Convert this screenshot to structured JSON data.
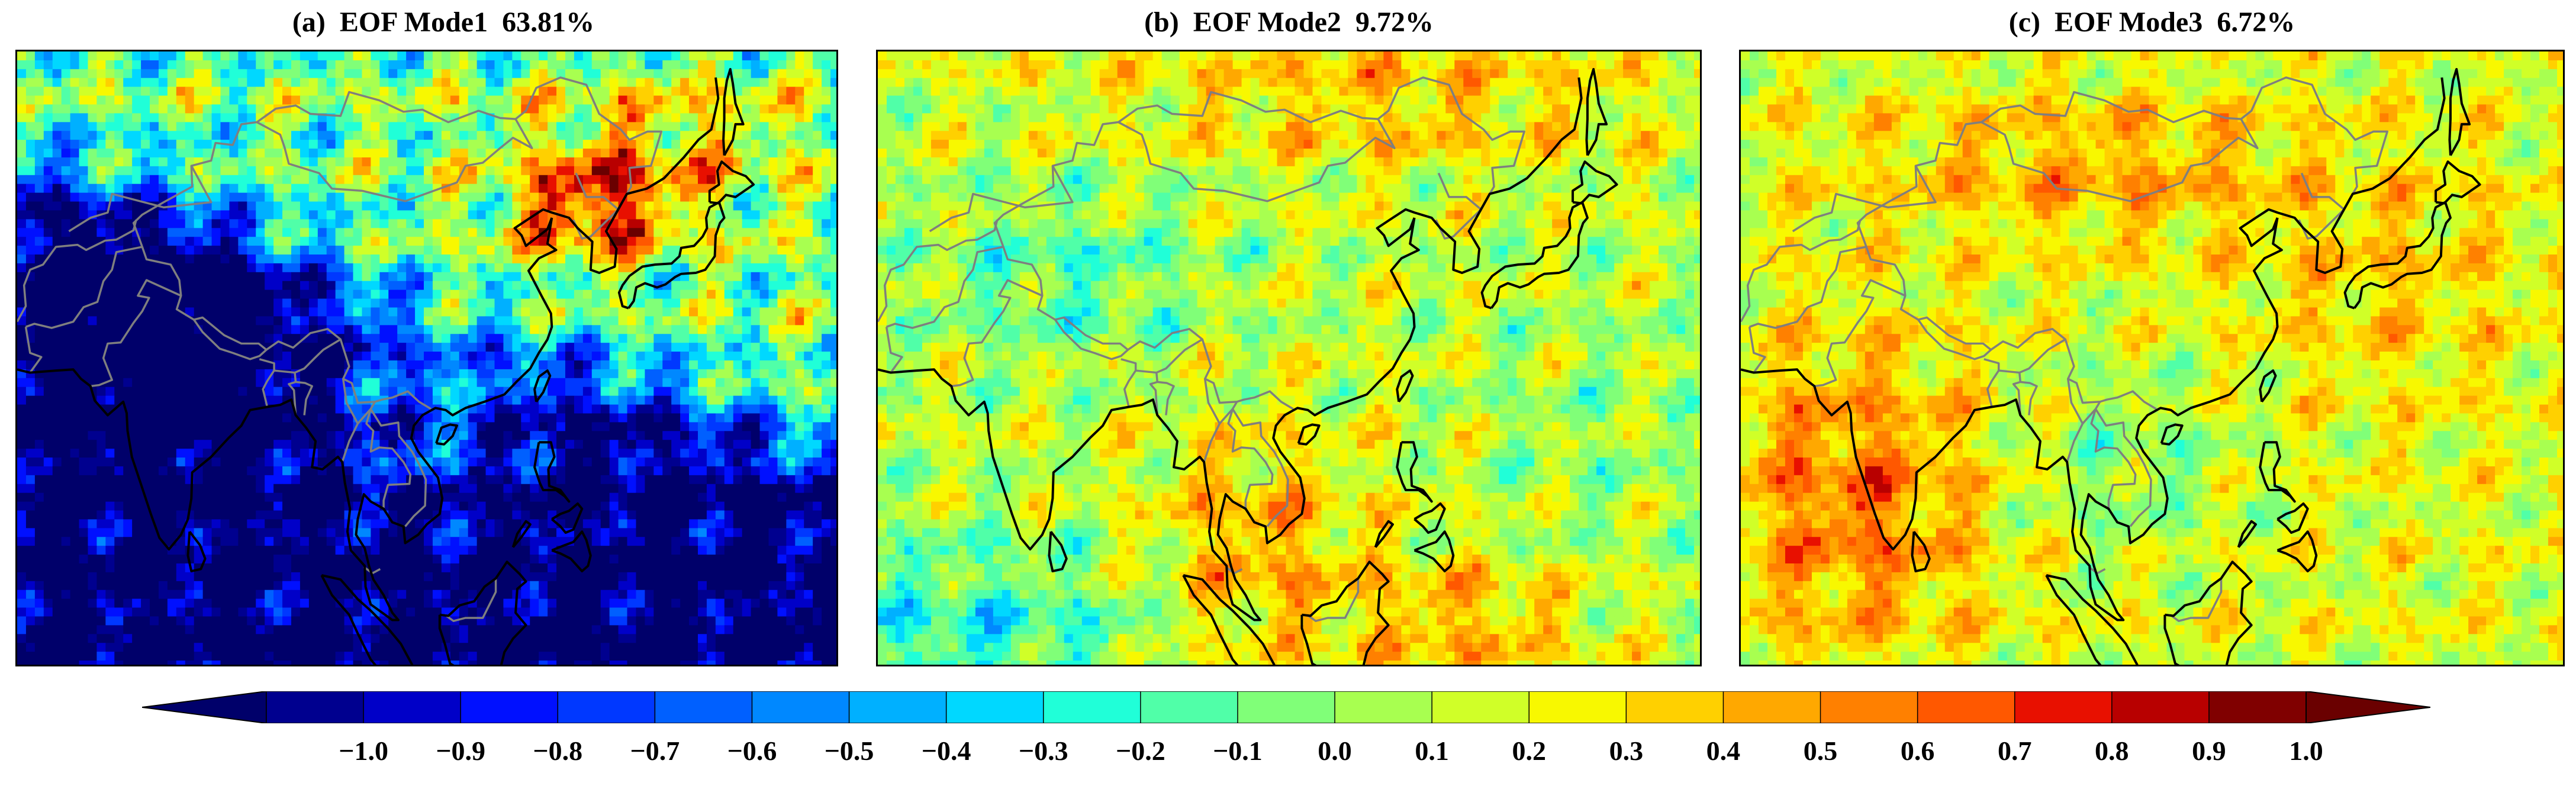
{
  "panels": [
    {
      "title": "(a)  EOF Mode1  63.81%",
      "field": "mode1"
    },
    {
      "title": "(b)  EOF Mode2  9.72%",
      "field": "mode2"
    },
    {
      "title": "(c)  EOF Mode3  6.72%",
      "field": "mode3"
    }
  ],
  "colorbar": {
    "ticks": [
      "−1.0",
      "−0.9",
      "−0.8",
      "−0.7",
      "−0.6",
      "−0.5",
      "−0.4",
      "−0.3",
      "−0.2",
      "−0.1",
      "0.0",
      "0.1",
      "0.2",
      "0.3",
      "0.4",
      "0.5",
      "0.6",
      "0.7",
      "0.8",
      "0.9",
      "1.0"
    ],
    "colors": [
      "#00008f",
      "#0000c8",
      "#0010ff",
      "#0038ff",
      "#0060ff",
      "#0088ff",
      "#00b0ff",
      "#00d8ff",
      "#20ffd8",
      "#50ffa8",
      "#80ff78",
      "#a8ff50",
      "#d0ff28",
      "#f8f800",
      "#ffd000",
      "#ffa800",
      "#ff8000",
      "#ff5800",
      "#e81000",
      "#b80000",
      "#800000"
    ],
    "under_color": "#00006a",
    "over_color": "#6a0000"
  },
  "colors": {
    "coastline": "#000000",
    "border": "#7f7f7f"
  }
}
